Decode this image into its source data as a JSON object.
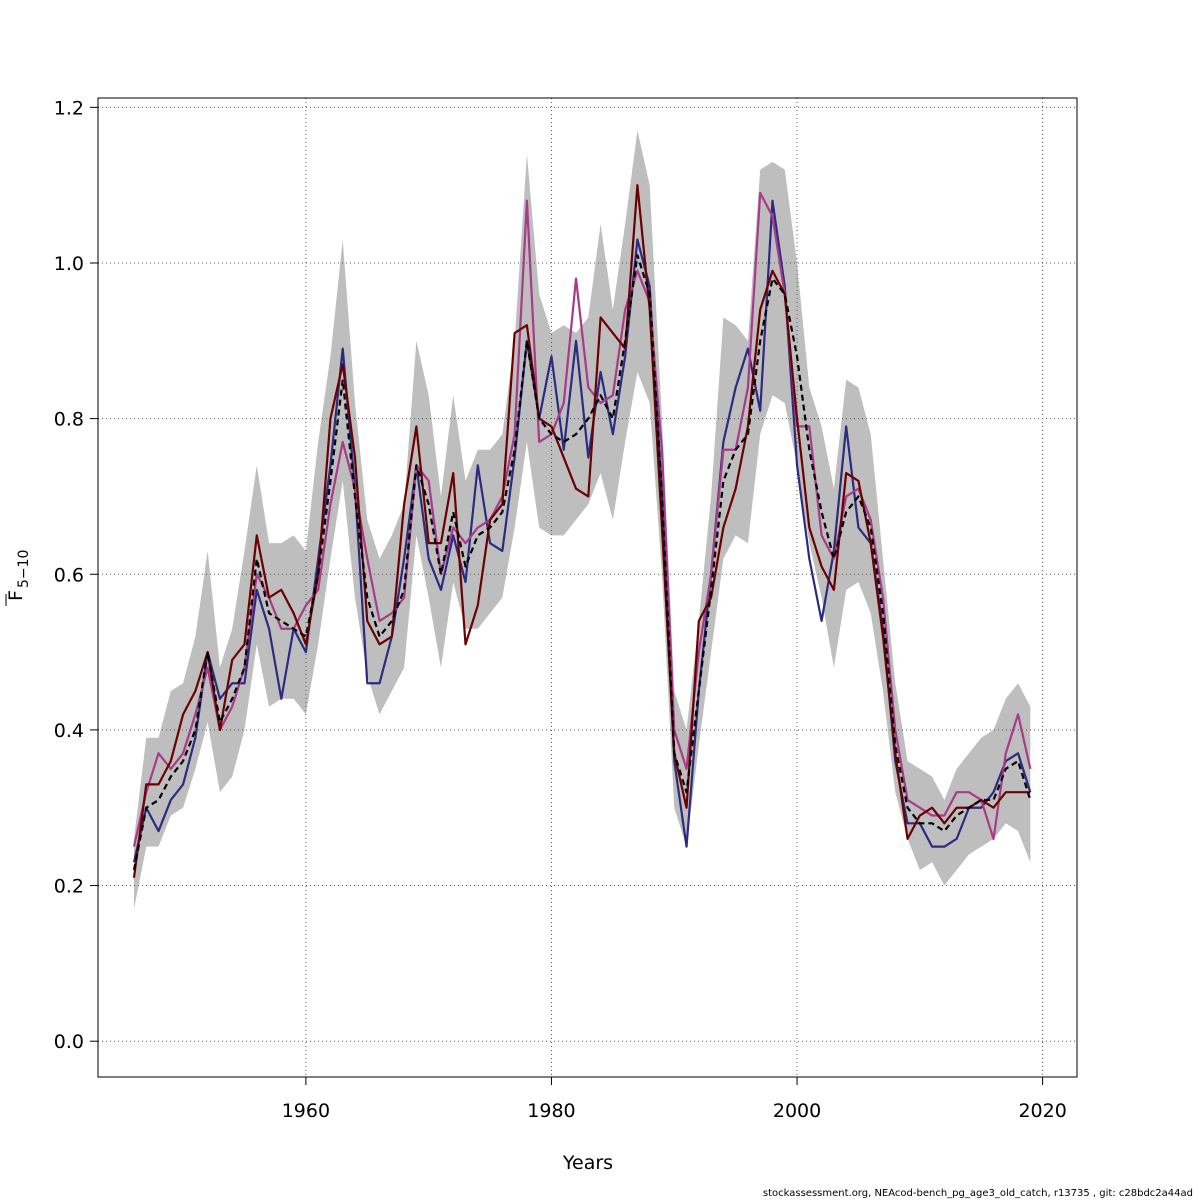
{
  "chart_data": {
    "type": "line",
    "x_label": "Years",
    "y_label": "F",
    "y_label_subscript": "5−10",
    "footer": "stockassessment.org, NEAcod-bench_pg_age3_old_catch, r13735 , git: c28bdc2a44ad",
    "xlim": [
      1943.07,
      2022.8
    ],
    "ylim": [
      -0.046,
      1.212
    ],
    "xticks": [
      1960,
      1980,
      2000,
      2020
    ],
    "yticks": [
      {
        "value": 0,
        "label": "0.0"
      },
      0.2,
      0.4,
      0.6,
      0.8,
      {
        "value": 1,
        "label": "1.0"
      },
      1.2
    ],
    "grid": true,
    "band_color": "#bebebe",
    "x": [
      1946,
      1947,
      1948,
      1949,
      1950,
      1951,
      1952,
      1953,
      1954,
      1955,
      1956,
      1957,
      1958,
      1959,
      1960,
      1961,
      1962,
      1963,
      1964,
      1965,
      1966,
      1967,
      1968,
      1969,
      1970,
      1971,
      1972,
      1973,
      1974,
      1975,
      1976,
      1977,
      1978,
      1979,
      1980,
      1981,
      1982,
      1983,
      1984,
      1985,
      1986,
      1987,
      1988,
      1989,
      1990,
      1991,
      1992,
      1993,
      1994,
      1995,
      1996,
      1997,
      1998,
      1999,
      2000,
      2001,
      2002,
      2003,
      2004,
      2005,
      2006,
      2007,
      2008,
      2009,
      2010,
      2011,
      2012,
      2013,
      2014,
      2015,
      2016,
      2017,
      2018,
      2019
    ],
    "band_upper": [
      0.26,
      0.39,
      0.39,
      0.45,
      0.46,
      0.52,
      0.63,
      0.48,
      0.53,
      0.63,
      0.74,
      0.64,
      0.64,
      0.65,
      0.63,
      0.77,
      0.88,
      1.03,
      0.82,
      0.67,
      0.62,
      0.65,
      0.69,
      0.9,
      0.83,
      0.7,
      0.83,
      0.72,
      0.76,
      0.76,
      0.78,
      0.9,
      1.14,
      0.96,
      0.91,
      0.92,
      0.91,
      0.93,
      1.05,
      0.94,
      1.05,
      1.17,
      1.1,
      0.8,
      0.45,
      0.4,
      0.54,
      0.7,
      0.93,
      0.92,
      0.9,
      1.12,
      1.13,
      1.12,
      1.0,
      0.84,
      0.79,
      0.71,
      0.85,
      0.84,
      0.78,
      0.62,
      0.46,
      0.36,
      0.35,
      0.34,
      0.31,
      0.35,
      0.37,
      0.39,
      0.4,
      0.44,
      0.46,
      0.43
    ],
    "band_lower": [
      0.17,
      0.25,
      0.25,
      0.29,
      0.3,
      0.35,
      0.41,
      0.32,
      0.34,
      0.4,
      0.51,
      0.43,
      0.44,
      0.44,
      0.42,
      0.51,
      0.62,
      0.72,
      0.57,
      0.47,
      0.42,
      0.45,
      0.48,
      0.65,
      0.57,
      0.48,
      0.59,
      0.53,
      0.53,
      0.55,
      0.57,
      0.66,
      0.77,
      0.66,
      0.65,
      0.65,
      0.67,
      0.69,
      0.73,
      0.67,
      0.77,
      0.86,
      0.82,
      0.6,
      0.3,
      0.25,
      0.38,
      0.5,
      0.62,
      0.65,
      0.64,
      0.78,
      0.83,
      0.82,
      0.74,
      0.64,
      0.57,
      0.48,
      0.58,
      0.59,
      0.55,
      0.45,
      0.32,
      0.26,
      0.22,
      0.23,
      0.2,
      0.22,
      0.24,
      0.25,
      0.26,
      0.28,
      0.27,
      0.23
    ],
    "series": [
      {
        "color": "#2b2b80",
        "values": [
          0.23,
          0.3,
          0.27,
          0.31,
          0.33,
          0.39,
          0.5,
          0.44,
          0.46,
          0.46,
          0.58,
          0.53,
          0.44,
          0.53,
          0.5,
          0.62,
          0.74,
          0.89,
          0.71,
          0.46,
          0.46,
          0.52,
          0.62,
          0.74,
          0.62,
          0.58,
          0.65,
          0.59,
          0.74,
          0.64,
          0.63,
          0.75,
          0.9,
          0.8,
          0.88,
          0.76,
          0.9,
          0.75,
          0.86,
          0.78,
          0.88,
          1.03,
          0.97,
          0.7,
          0.36,
          0.25,
          0.45,
          0.6,
          0.77,
          0.84,
          0.89,
          0.81,
          1.08,
          0.97,
          0.74,
          0.62,
          0.54,
          0.63,
          0.79,
          0.66,
          0.64,
          0.53,
          0.36,
          0.28,
          0.28,
          0.25,
          0.25,
          0.26,
          0.3,
          0.3,
          0.32,
          0.36,
          0.37,
          0.32
        ]
      },
      {
        "color": "#a83a8a",
        "values": [
          0.25,
          0.32,
          0.37,
          0.35,
          0.37,
          0.42,
          0.48,
          0.4,
          0.43,
          0.48,
          0.6,
          0.57,
          0.53,
          0.53,
          0.56,
          0.58,
          0.69,
          0.77,
          0.71,
          0.62,
          0.54,
          0.55,
          0.57,
          0.74,
          0.72,
          0.6,
          0.66,
          0.64,
          0.66,
          0.67,
          0.7,
          0.78,
          1.08,
          0.77,
          0.78,
          0.82,
          0.98,
          0.84,
          0.82,
          0.83,
          0.94,
          0.99,
          0.95,
          0.76,
          0.4,
          0.35,
          0.5,
          0.6,
          0.76,
          0.76,
          0.84,
          1.09,
          1.06,
          0.96,
          0.79,
          0.79,
          0.65,
          0.62,
          0.7,
          0.71,
          0.67,
          0.57,
          0.4,
          0.31,
          0.3,
          0.29,
          0.29,
          0.32,
          0.32,
          0.31,
          0.26,
          0.37,
          0.42,
          0.35
        ]
      },
      {
        "color": "#6b0000",
        "values": [
          0.21,
          0.33,
          0.33,
          0.36,
          0.42,
          0.45,
          0.5,
          0.4,
          0.49,
          0.51,
          0.65,
          0.57,
          0.58,
          0.55,
          0.51,
          0.6,
          0.8,
          0.87,
          0.75,
          0.54,
          0.51,
          0.52,
          0.69,
          0.79,
          0.64,
          0.64,
          0.73,
          0.51,
          0.56,
          0.67,
          0.69,
          0.91,
          0.92,
          0.8,
          0.79,
          0.75,
          0.71,
          0.7,
          0.93,
          0.91,
          0.89,
          1.1,
          0.94,
          0.66,
          0.37,
          0.3,
          0.54,
          0.57,
          0.66,
          0.71,
          0.79,
          0.94,
          0.99,
          0.96,
          0.8,
          0.66,
          0.61,
          0.58,
          0.73,
          0.72,
          0.64,
          0.52,
          0.37,
          0.26,
          0.29,
          0.3,
          0.28,
          0.3,
          0.3,
          0.31,
          0.3,
          0.32,
          0.32,
          0.32
        ]
      },
      {
        "color": "#000000",
        "dashed": true,
        "values": [
          0.22,
          0.3,
          0.31,
          0.34,
          0.36,
          0.4,
          0.5,
          0.41,
          0.44,
          0.48,
          0.62,
          0.55,
          0.54,
          0.53,
          0.52,
          0.6,
          0.72,
          0.85,
          0.7,
          0.57,
          0.52,
          0.54,
          0.58,
          0.74,
          0.69,
          0.6,
          0.68,
          0.61,
          0.65,
          0.66,
          0.68,
          0.76,
          0.9,
          0.8,
          0.78,
          0.77,
          0.78,
          0.8,
          0.83,
          0.8,
          0.9,
          1.01,
          0.96,
          0.7,
          0.37,
          0.32,
          0.45,
          0.58,
          0.72,
          0.76,
          0.78,
          0.9,
          0.98,
          0.96,
          0.88,
          0.76,
          0.68,
          0.62,
          0.68,
          0.7,
          0.66,
          0.55,
          0.38,
          0.3,
          0.28,
          0.28,
          0.27,
          0.29,
          0.3,
          0.31,
          0.31,
          0.35,
          0.36,
          0.31
        ]
      }
    ]
  }
}
